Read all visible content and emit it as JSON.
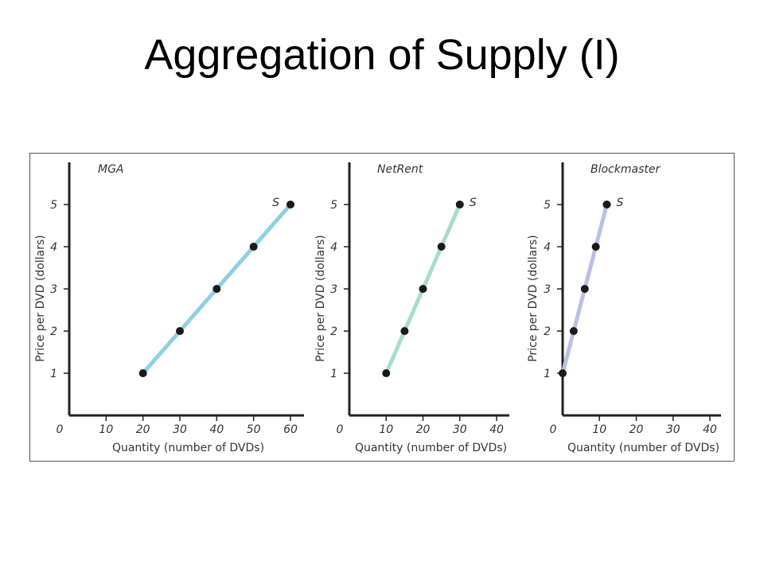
{
  "slide": {
    "title": "Aggregation of Supply (I)"
  },
  "chart_data": [
    {
      "type": "line",
      "title": "MGA",
      "xlabel": "Quantity (number of DVDs)",
      "ylabel": "Price per DVD (dollars)",
      "x_ticks": [
        0,
        10,
        20,
        30,
        40,
        50,
        60
      ],
      "y_ticks": [
        1,
        2,
        3,
        4,
        5
      ],
      "xlim": [
        0,
        60
      ],
      "ylim": [
        0,
        6
      ],
      "curve_label": "S",
      "line_color": "#8fd0e2",
      "points": [
        {
          "x": 20,
          "y": 1
        },
        {
          "x": 30,
          "y": 2
        },
        {
          "x": 40,
          "y": 3
        },
        {
          "x": 50,
          "y": 4
        },
        {
          "x": 60,
          "y": 5
        }
      ]
    },
    {
      "type": "line",
      "title": "NetRent",
      "xlabel": "Quantity (number of DVDs)",
      "ylabel": "Price per DVD (dollars)",
      "x_ticks": [
        0,
        10,
        20,
        30,
        40
      ],
      "y_ticks": [
        1,
        2,
        3,
        4,
        5
      ],
      "xlim": [
        0,
        40
      ],
      "ylim": [
        0,
        6
      ],
      "curve_label": "S",
      "line_color": "#a9dccb",
      "points": [
        {
          "x": 10,
          "y": 1
        },
        {
          "x": 15,
          "y": 2
        },
        {
          "x": 20,
          "y": 3
        },
        {
          "x": 25,
          "y": 4
        },
        {
          "x": 30,
          "y": 5
        }
      ]
    },
    {
      "type": "line",
      "title": "Blockmaster",
      "xlabel": "Quantity (number of DVDs)",
      "ylabel": "Price per DVD (dollars)",
      "x_ticks": [
        0,
        10,
        20,
        30,
        40
      ],
      "y_ticks": [
        1,
        2,
        3,
        4,
        5
      ],
      "xlim": [
        0,
        40
      ],
      "ylim": [
        0,
        6
      ],
      "curve_label": "S",
      "line_color": "#b8c0e6",
      "points": [
        {
          "x": 0,
          "y": 1
        },
        {
          "x": 3,
          "y": 2
        },
        {
          "x": 6,
          "y": 3
        },
        {
          "x": 9,
          "y": 4
        },
        {
          "x": 12,
          "y": 5
        }
      ]
    }
  ]
}
